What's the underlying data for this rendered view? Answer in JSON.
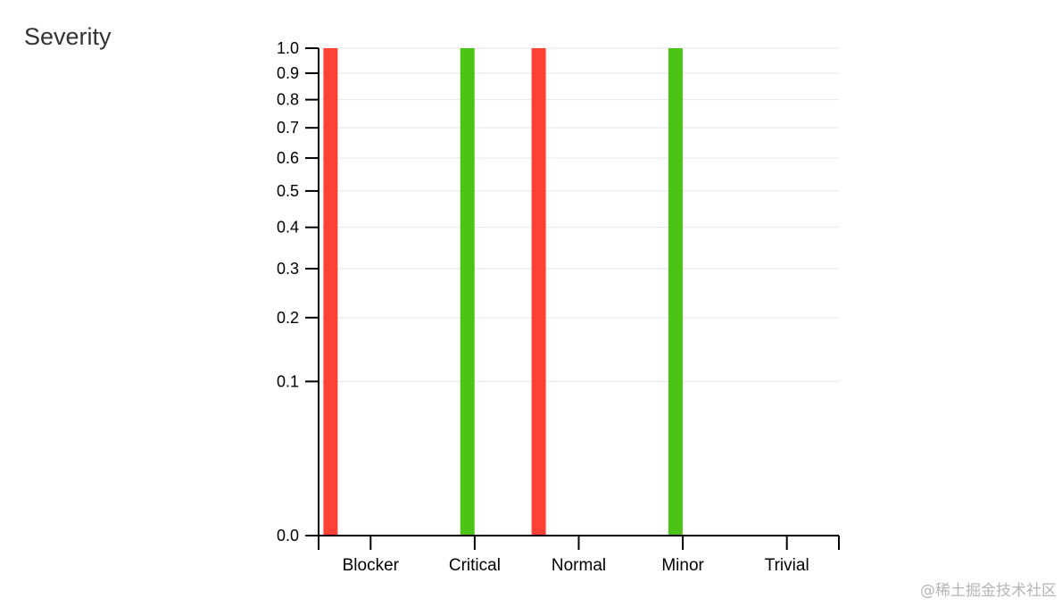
{
  "widget": {
    "title": "Severity"
  },
  "watermark": "@稀土掘金技术社区",
  "chart_data": {
    "type": "bar",
    "title": "",
    "xlabel": "",
    "ylabel": "",
    "categories": [
      "Blocker",
      "Critical",
      "Normal",
      "Minor",
      "Trivial"
    ],
    "yscale": "sqrt",
    "ylim": [
      0,
      1
    ],
    "yticks": [
      0,
      0.1,
      0.2,
      0.3,
      0.4,
      0.5,
      0.6,
      0.7,
      0.8,
      0.9,
      1.0
    ],
    "ytick_labels": [
      "0.0",
      "0.1",
      "0.2",
      "0.3",
      "0.4",
      "0.5",
      "0.6",
      "0.7",
      "0.8",
      "0.9",
      "1.0"
    ],
    "grid": true,
    "series": [
      {
        "color": "#fd4135",
        "values": [
          1,
          0,
          1,
          0,
          0
        ]
      },
      {
        "color": "#4cc415",
        "values": [
          0,
          1,
          0,
          1,
          0
        ]
      }
    ]
  }
}
